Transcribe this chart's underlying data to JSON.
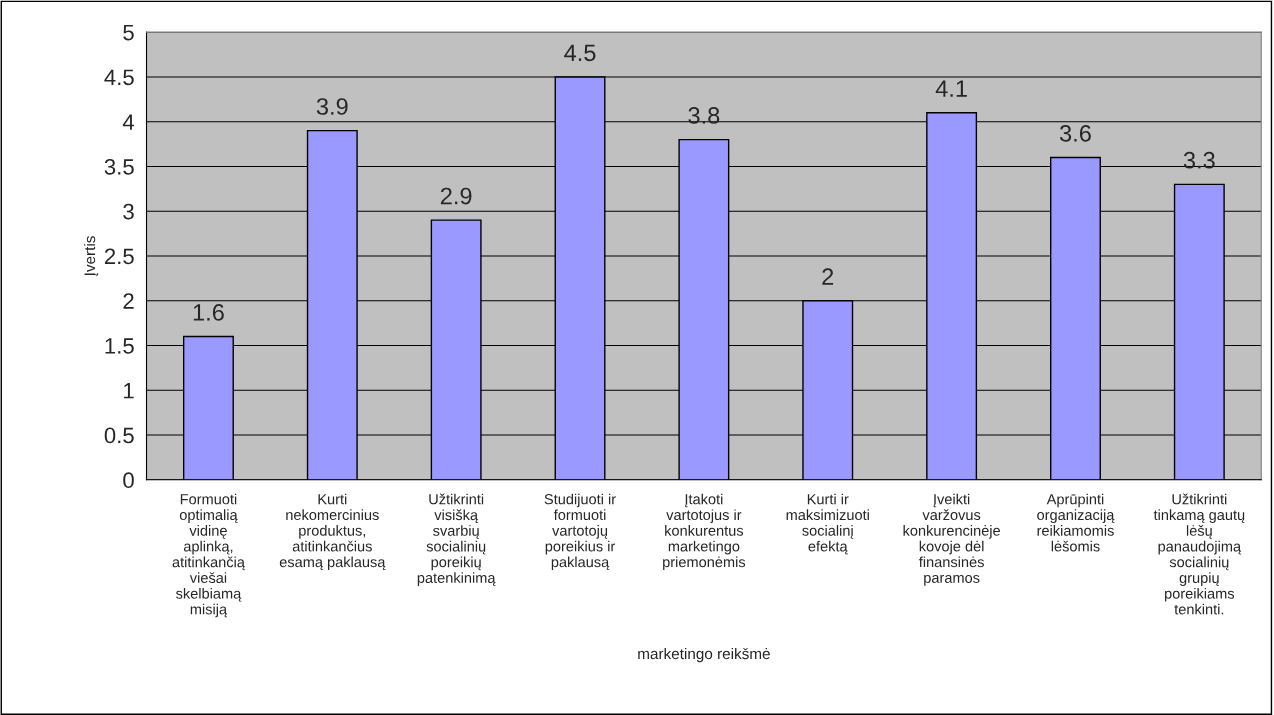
{
  "chart_data": {
    "type": "bar",
    "xlabel": "marketingo reikšmė",
    "ylabel": "Įvertis",
    "categories": [
      "Formuoti optimalią vidinę aplinką, atitinkančią viešai skelbiamą misiją",
      "Kurti nekomercinius produktus, atitinkančius esamą paklausą",
      "Užtikrinti visišką svarbių socialinių poreikių patenkinimą",
      "Studijuoti ir formuoti vartotojų poreikius ir paklausą",
      "Įtakoti vartotojus ir konkurentus marketingo priemonėmis",
      "Kurti ir maksimizuoti socialinį efektą",
      "Įveikti varžovus konkurencinėje kovoje dėl finansinės paramos",
      "Aprūpinti organizaciją reikiamomis lėšomis",
      "Užtikrinti tinkamą gautų lėšų panaudojimą socialinių grupių poreikiams tenkinti."
    ],
    "values": [
      1.6,
      3.9,
      2.9,
      4.5,
      3.8,
      2,
      4.1,
      3.6,
      3.3
    ],
    "color": "#9999ff",
    "ylim": [
      0,
      5
    ],
    "yticks": [
      0,
      0.5,
      1,
      1.5,
      2,
      2.5,
      3,
      3.5,
      4,
      4.5,
      5
    ],
    "grid": "y",
    "data_labels": true
  }
}
